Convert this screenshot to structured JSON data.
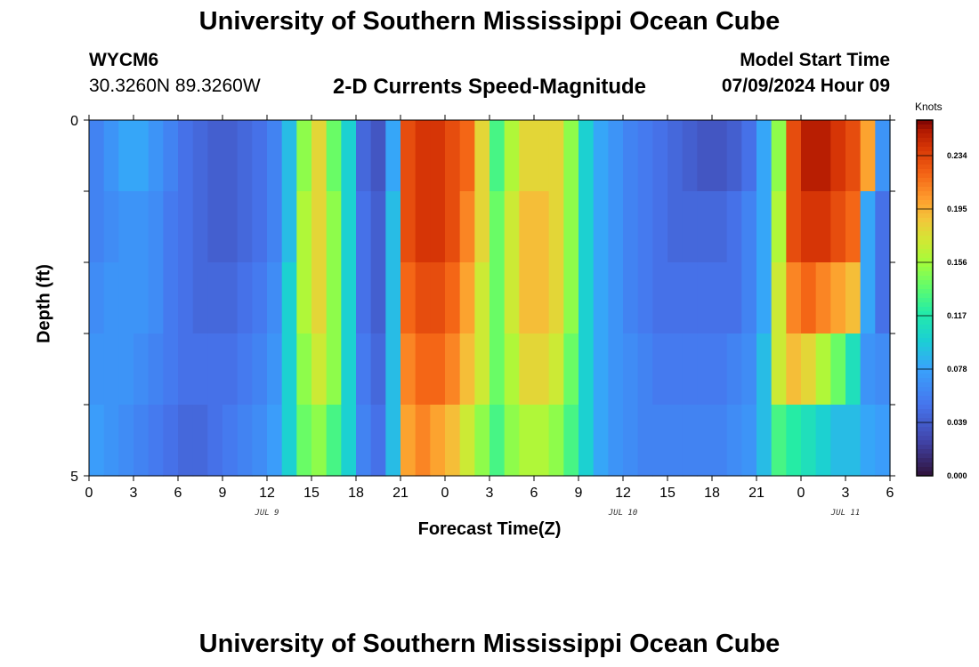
{
  "page": {
    "title": "University of Southern Mississippi Ocean Cube",
    "bottom_title": "University of Southern Mississippi Ocean Cube"
  },
  "station": {
    "id": "WYCM6",
    "coords": "30.3260N  89.3260W"
  },
  "plot": {
    "subtitle": "2-D Currents Speed-Magnitude"
  },
  "model": {
    "label": "Model Start Time",
    "start": "07/09/2024 Hour 09"
  },
  "chart_data": {
    "type": "heatmap",
    "title": "2-D Currents Speed-Magnitude",
    "xlabel": "Forecast Time(Z)",
    "ylabel": "Depth (ft)",
    "x_tick_labels": [
      "0",
      "3",
      "6",
      "9",
      "12",
      "15",
      "18",
      "21",
      "0",
      "3",
      "6",
      "9",
      "12",
      "15",
      "18",
      "21",
      "0",
      "3",
      "6"
    ],
    "date_labels": [
      {
        "text": "JUL 9",
        "at_tick": 4
      },
      {
        "text": "JUL 10",
        "at_tick": 12
      },
      {
        "text": "JUL 11",
        "at_tick": 17
      }
    ],
    "y_tick_labels": [
      "0",
      "5"
    ],
    "ylim": [
      0,
      5
    ],
    "hours": 54,
    "depth_rows": 5,
    "colorbar": {
      "title": "Knots",
      "min": 0.0,
      "max": 0.26,
      "tick_labels": [
        "0.000",
        "0.039",
        "0.078",
        "0.117",
        "0.156",
        "0.195",
        "0.234"
      ],
      "tick_values": [
        0.0,
        0.039,
        0.078,
        0.117,
        0.156,
        0.195,
        0.234
      ],
      "colormap": "turbo"
    },
    "speed_knots": [
      [
        0.06,
        0.07,
        0.08,
        0.08,
        0.07,
        0.06,
        0.05,
        0.045,
        0.04,
        0.04,
        0.045,
        0.05,
        0.06,
        0.09,
        0.15,
        0.18,
        0.14,
        0.1,
        0.045,
        0.035,
        0.08,
        0.23,
        0.24,
        0.24,
        0.23,
        0.22,
        0.18,
        0.13,
        0.16,
        0.18,
        0.18,
        0.18,
        0.15,
        0.1,
        0.08,
        0.07,
        0.06,
        0.055,
        0.05,
        0.045,
        0.04,
        0.035,
        0.035,
        0.04,
        0.05,
        0.08,
        0.15,
        0.23,
        0.25,
        0.25,
        0.24,
        0.23,
        0.2,
        0.07
      ],
      [
        0.06,
        0.065,
        0.07,
        0.07,
        0.065,
        0.055,
        0.05,
        0.045,
        0.04,
        0.04,
        0.045,
        0.05,
        0.06,
        0.09,
        0.16,
        0.18,
        0.15,
        0.1,
        0.05,
        0.04,
        0.09,
        0.23,
        0.24,
        0.24,
        0.23,
        0.21,
        0.18,
        0.14,
        0.17,
        0.19,
        0.19,
        0.18,
        0.15,
        0.1,
        0.08,
        0.07,
        0.06,
        0.055,
        0.05,
        0.045,
        0.045,
        0.045,
        0.045,
        0.05,
        0.06,
        0.08,
        0.16,
        0.23,
        0.24,
        0.24,
        0.23,
        0.22,
        0.08,
        0.05
      ],
      [
        0.065,
        0.07,
        0.07,
        0.07,
        0.065,
        0.055,
        0.05,
        0.045,
        0.045,
        0.045,
        0.05,
        0.055,
        0.065,
        0.1,
        0.16,
        0.18,
        0.15,
        0.1,
        0.05,
        0.04,
        0.09,
        0.22,
        0.23,
        0.23,
        0.22,
        0.2,
        0.17,
        0.14,
        0.17,
        0.19,
        0.19,
        0.18,
        0.15,
        0.1,
        0.08,
        0.07,
        0.06,
        0.055,
        0.05,
        0.05,
        0.05,
        0.05,
        0.05,
        0.05,
        0.06,
        0.08,
        0.17,
        0.21,
        0.22,
        0.21,
        0.2,
        0.19,
        0.08,
        0.05
      ],
      [
        0.07,
        0.07,
        0.07,
        0.065,
        0.06,
        0.055,
        0.05,
        0.05,
        0.05,
        0.05,
        0.055,
        0.06,
        0.07,
        0.1,
        0.15,
        0.17,
        0.15,
        0.1,
        0.055,
        0.045,
        0.09,
        0.21,
        0.22,
        0.22,
        0.21,
        0.19,
        0.17,
        0.14,
        0.16,
        0.18,
        0.18,
        0.17,
        0.14,
        0.1,
        0.08,
        0.07,
        0.065,
        0.06,
        0.055,
        0.055,
        0.055,
        0.055,
        0.055,
        0.06,
        0.065,
        0.09,
        0.17,
        0.19,
        0.18,
        0.16,
        0.14,
        0.11,
        0.07,
        0.065
      ],
      [
        0.075,
        0.07,
        0.065,
        0.06,
        0.055,
        0.05,
        0.045,
        0.045,
        0.05,
        0.055,
        0.06,
        0.065,
        0.075,
        0.1,
        0.14,
        0.15,
        0.13,
        0.1,
        0.06,
        0.05,
        0.09,
        0.2,
        0.21,
        0.2,
        0.19,
        0.17,
        0.15,
        0.13,
        0.15,
        0.16,
        0.16,
        0.15,
        0.13,
        0.1,
        0.08,
        0.07,
        0.065,
        0.06,
        0.06,
        0.06,
        0.06,
        0.06,
        0.06,
        0.065,
        0.07,
        0.09,
        0.13,
        0.12,
        0.11,
        0.1,
        0.09,
        0.09,
        0.08,
        0.075
      ]
    ]
  }
}
